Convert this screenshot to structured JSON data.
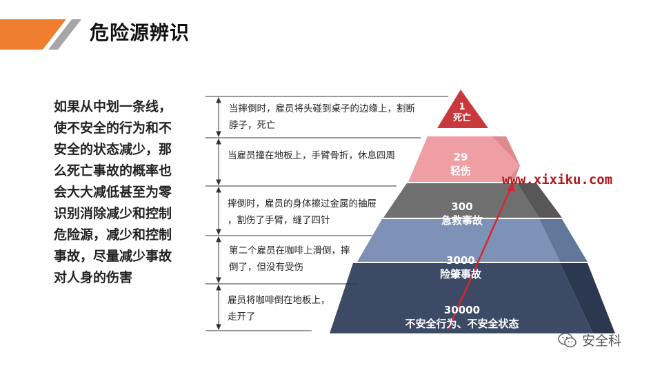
{
  "title": "危险源辨识",
  "left_paragraph": [
    "如果从中划一条线，",
    "使不安全的行为和不",
    "安全的状态减少，那",
    "么死亡事故的概率也",
    "会大大减低甚至为零",
    "识别消除减少和控制",
    "危险源，减少和控制",
    "事故，尽量减少事故",
    "对人身的伤害"
  ],
  "descriptions": [
    [
      "当摔倒时，雇员将头碰到桌子的边缘上，割断",
      "脖子，死亡"
    ],
    [
      "当雇员撞在地板上，手臂骨折，休息四周"
    ],
    [
      "摔倒时，雇员的身体擦过金属的抽屉",
      "，割伤了手臂，缝了四针"
    ],
    [
      "第二个雇员在咖啡上滑倒，摔",
      "倒了，但没有受伤"
    ],
    [
      "雇员将咖啡倒在地板上，",
      "走开了"
    ]
  ],
  "pyramid": [
    {
      "count": "1",
      "label": "死亡",
      "color": "#c8393e"
    },
    {
      "count": "29",
      "label": "轻伤",
      "color": "#ef9fa3"
    },
    {
      "count": "300",
      "label": "急救事故",
      "color": "#6f6f6f"
    },
    {
      "count": "3000",
      "label": "险肇事故",
      "color": "#7e92b7"
    },
    {
      "count": "30000",
      "label": "不安全行为、不安全状态",
      "color": "#3d4a66"
    }
  ],
  "watermark": "www.xixiku.com",
  "wechat_account": "安全科",
  "colors": {
    "accent_orange": "#ee7d30",
    "accent_gray": "#a6a6a6",
    "arrow_red": "#d9252b"
  },
  "icons": {
    "wechat": "wechat-logo-icon"
  }
}
